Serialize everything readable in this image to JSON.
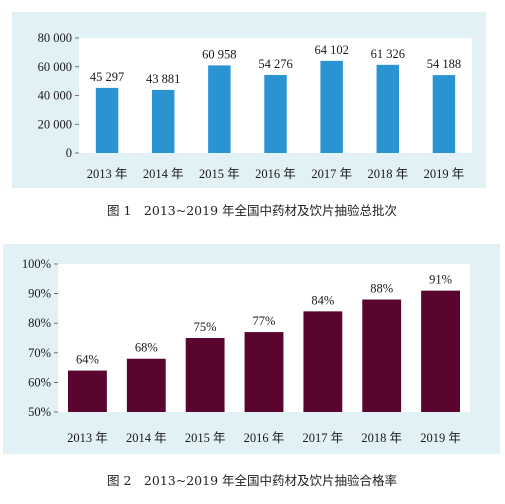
{
  "colors": {
    "panel_bg": "#e2f1f5",
    "chart1_bar": "#2a94d2",
    "chart2_bar": "#5a0430",
    "plot_bg": "#ffffff"
  },
  "chart_data": [
    {
      "type": "bar",
      "caption": "图 1　2013~2019 年全国中药材及饮片抽验总批次",
      "categories": [
        "2013 年",
        "2014 年",
        "2015 年",
        "2016 年",
        "2017 年",
        "2018 年",
        "2019 年"
      ],
      "values": [
        45297,
        43881,
        60958,
        54276,
        64102,
        61326,
        54188
      ],
      "value_labels": [
        "45 297",
        "43 881",
        "60 958",
        "54 276",
        "64 102",
        "61 326",
        "54 188"
      ],
      "ylim": [
        0,
        80000
      ],
      "yticks": [
        0,
        20000,
        40000,
        60000,
        80000
      ],
      "ytick_labels": [
        "0",
        "20 000",
        "40 000",
        "60 000",
        "80 000"
      ],
      "grid": false,
      "legend": "none"
    },
    {
      "type": "bar",
      "caption": "图 2　2013~2019 年全国中药材及饮片抽验合格率",
      "categories": [
        "2013 年",
        "2014 年",
        "2015 年",
        "2016 年",
        "2017 年",
        "2018 年",
        "2019 年"
      ],
      "values": [
        64,
        68,
        75,
        77,
        84,
        88,
        91
      ],
      "value_labels": [
        "64%",
        "68%",
        "75%",
        "77%",
        "84%",
        "88%",
        "91%"
      ],
      "ylim": [
        50,
        100
      ],
      "yticks": [
        50,
        60,
        70,
        80,
        90,
        100
      ],
      "ytick_labels": [
        "50%",
        "60%",
        "70%",
        "80%",
        "90%",
        "100%"
      ],
      "grid": false,
      "legend": "none"
    }
  ]
}
